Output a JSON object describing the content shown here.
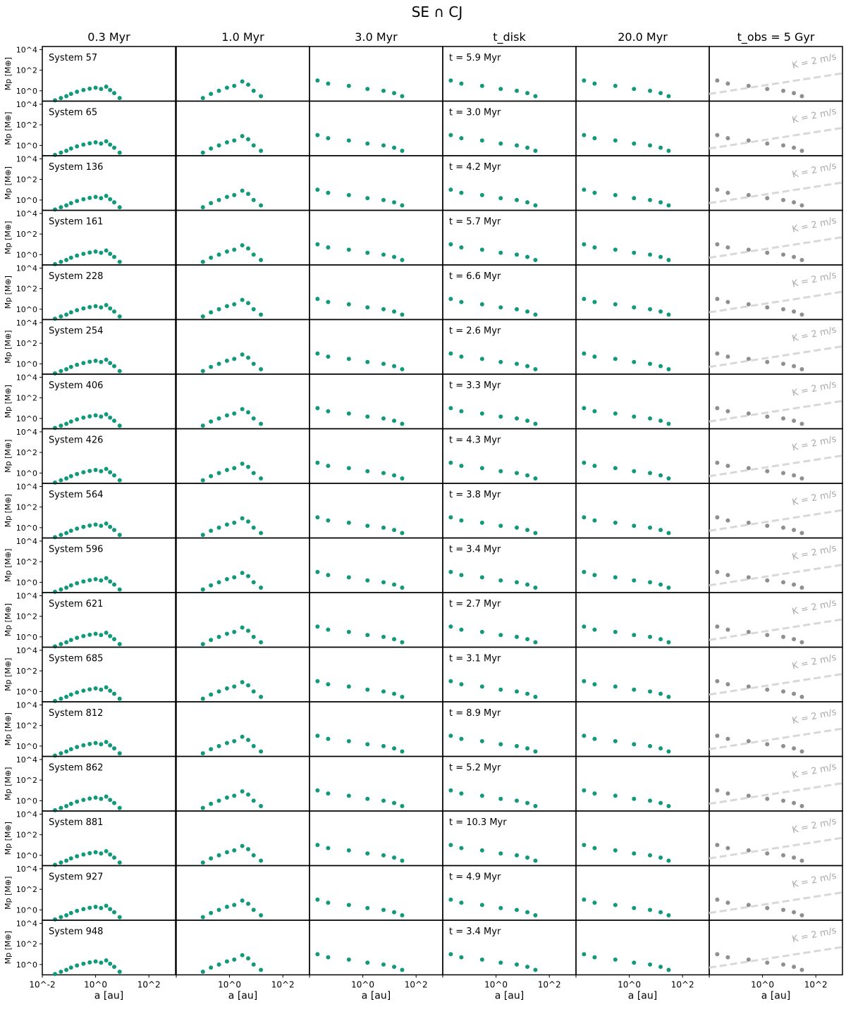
{
  "figure": {
    "title": "SE ∩ CJ"
  },
  "chart_data": {
    "type": "scatter",
    "xscale": "log",
    "yscale": "log",
    "xlim": [
      0.01,
      1000
    ],
    "ylim": [
      0.1,
      20000
    ],
    "xticks": [
      "10^-2",
      "10^0",
      "10^2"
    ],
    "yticks": [
      "10^0",
      "10^2",
      "10^4"
    ],
    "xlabel": "a [au]",
    "ylabel": "Mp [M⊕]",
    "columns": [
      "0.3 Myr",
      "1.0 Myr",
      "3.0 Myr",
      "t_disk",
      "20.0 Myr",
      "t_obs = 5 Gyr"
    ],
    "rv_line_label": "K = 2 m/s",
    "colors": {
      "planet": "#11997a",
      "observed_planet": "#8f8f8f",
      "rv_line": "#d8d8d8",
      "error_bar": "#c8c8c8"
    },
    "systems": [
      {
        "name": "System 57",
        "t_disk": "t = 5.9 Myr"
      },
      {
        "name": "System 65",
        "t_disk": "t = 3.0 Myr"
      },
      {
        "name": "System 136",
        "t_disk": "t = 4.2 Myr"
      },
      {
        "name": "System 161",
        "t_disk": "t = 5.7 Myr"
      },
      {
        "name": "System 228",
        "t_disk": "t = 6.6 Myr"
      },
      {
        "name": "System 254",
        "t_disk": "t = 2.6 Myr"
      },
      {
        "name": "System 406",
        "t_disk": "t = 3.3 Myr"
      },
      {
        "name": "System 426",
        "t_disk": "t = 4.3 Myr"
      },
      {
        "name": "System 564",
        "t_disk": "t = 3.8 Myr"
      },
      {
        "name": "System 596",
        "t_disk": "t = 3.4 Myr"
      },
      {
        "name": "System 621",
        "t_disk": "t = 2.7 Myr"
      },
      {
        "name": "System 685",
        "t_disk": "t = 3.1 Myr"
      },
      {
        "name": "System 812",
        "t_disk": "t = 8.9 Myr"
      },
      {
        "name": "System 862",
        "t_disk": "t = 5.2 Myr"
      },
      {
        "name": "System 881",
        "t_disk": "t = 10.3 Myr"
      },
      {
        "name": "System 927",
        "t_disk": "t = 4.9 Myr"
      },
      {
        "name": "System 948",
        "t_disk": "t = 3.4 Myr"
      }
    ],
    "panel_points": {
      "early": [
        [
          0.03,
          0.12
        ],
        [
          0.05,
          0.2
        ],
        [
          0.08,
          0.3
        ],
        [
          0.12,
          0.5
        ],
        [
          0.2,
          0.8
        ],
        [
          0.35,
          1.2
        ],
        [
          0.6,
          1.6
        ],
        [
          1.0,
          2.0
        ],
        [
          1.6,
          1.5
        ],
        [
          2.5,
          2.5
        ],
        [
          3.5,
          1.2
        ],
        [
          5,
          0.6
        ],
        [
          8,
          0.2
        ]
      ],
      "mid": [
        [
          0.1,
          0.2
        ],
        [
          0.2,
          0.5
        ],
        [
          0.4,
          1.0
        ],
        [
          0.8,
          2.0
        ],
        [
          1.5,
          3.0
        ],
        [
          3,
          8
        ],
        [
          5,
          4
        ],
        [
          8,
          1.0
        ],
        [
          15,
          0.3
        ]
      ],
      "late": [
        [
          0.02,
          10
        ],
        [
          0.05,
          5
        ],
        [
          0.3,
          3
        ],
        [
          1.5,
          1.5
        ],
        [
          6,
          1.0
        ],
        [
          15,
          0.6
        ],
        [
          30,
          0.3
        ]
      ]
    },
    "rv_line": {
      "a_start": 0.01,
      "m_start": 0.5,
      "a_end": 1000,
      "m_end": 50
    }
  }
}
